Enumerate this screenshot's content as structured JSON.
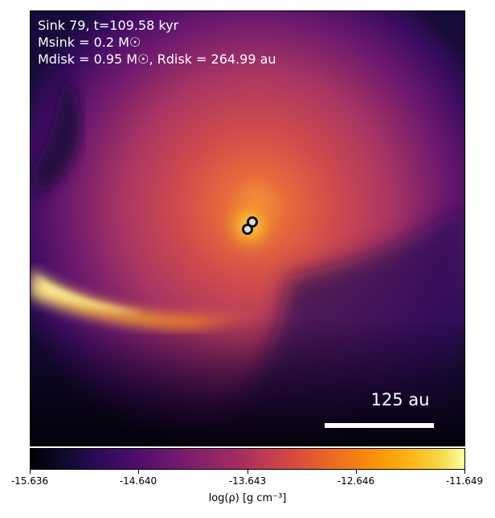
{
  "header": {
    "line1": "Sink 79, t=109.58 kyr",
    "line2": "Msink = 0.2 M☉",
    "line3": "Mdisk = 0.95 M☉, Rdisk = 264.99 au"
  },
  "scalebar": {
    "label": "125 au"
  },
  "colorbar": {
    "label": "log(ρ) [g cm⁻³]",
    "ticks": [
      "-15.636",
      "-14.640",
      "-13.643",
      "-12.646",
      "-11.649"
    ],
    "cmap": "inferno"
  },
  "sinks": {
    "count": 2
  }
}
